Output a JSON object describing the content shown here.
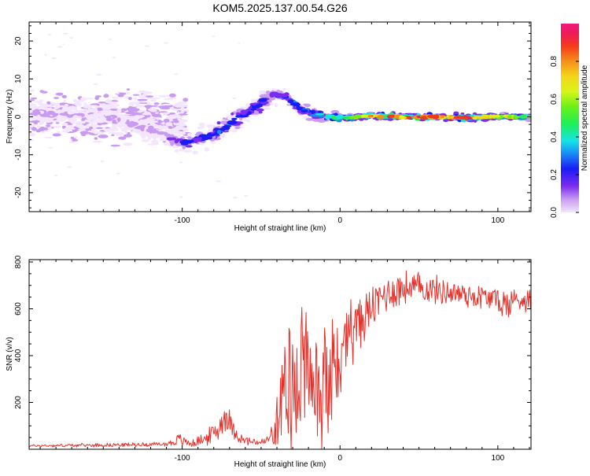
{
  "title": "KOM5.2025.137.00.54.G26",
  "chart_data": [
    {
      "type": "heatmap",
      "xlabel": "Height of straight line (km)",
      "ylabel": "Frequency (Hz)",
      "xlim": [
        -197,
        121
      ],
      "ylim": [
        -25,
        25
      ],
      "xticks": [
        "-100",
        "0",
        "100"
      ],
      "yticks": [
        "-20",
        "-10",
        "0",
        "10",
        "20"
      ],
      "ridge": {
        "x": [
          -197,
          -150,
          -110,
          -100,
          -90,
          -80,
          -70,
          -60,
          -50,
          -42,
          -35,
          -25,
          -15,
          -5,
          5,
          20,
          40,
          60,
          80,
          100,
          121
        ],
        "freq": [
          1.0,
          0.5,
          -5.0,
          -6.5,
          -6.0,
          -4.5,
          -2.0,
          1.0,
          3.5,
          5.8,
          5.5,
          2.0,
          0.5,
          0.0,
          -0.3,
          0.3,
          0.0,
          0.0,
          -0.3,
          0.1,
          0.0
        ],
        "amplitude": [
          0.08,
          0.08,
          0.12,
          0.22,
          0.28,
          0.3,
          0.32,
          0.25,
          0.3,
          0.2,
          0.28,
          0.32,
          0.4,
          0.5,
          0.6,
          0.85,
          0.9,
          0.92,
          0.88,
          0.75,
          0.55
        ]
      },
      "colorbar": {
        "label": "Normalized spectral amplitude",
        "range": [
          0,
          1
        ],
        "ticks": [
          "0.0",
          "0.2",
          "0.4",
          "0.6",
          "0.8"
        ]
      }
    },
    {
      "type": "line",
      "xlabel": "Height of straight line (km)",
      "ylabel": "SNR (v/v)",
      "xlim": [
        -197,
        121
      ],
      "ylim": [
        0,
        810
      ],
      "xticks": [
        "-100",
        "0",
        "100"
      ],
      "yticks": [
        "200",
        "400",
        "600",
        "800"
      ],
      "color": "#e8302a",
      "envelope": {
        "x": [
          -197,
          -150,
          -110,
          -102,
          -95,
          -85,
          -78,
          -72,
          -68,
          -62,
          -55,
          -48,
          -42,
          -38,
          -33,
          -28,
          -22,
          -15,
          -10,
          -5,
          0,
          5,
          10,
          15,
          20,
          25,
          30,
          40,
          50,
          60,
          70,
          80,
          90,
          100,
          105,
          110,
          121
        ],
        "y": [
          15,
          18,
          22,
          40,
          25,
          45,
          80,
          150,
          90,
          40,
          30,
          30,
          60,
          160,
          250,
          330,
          300,
          270,
          320,
          350,
          400,
          470,
          520,
          560,
          600,
          640,
          670,
          690,
          690,
          680,
          670,
          660,
          650,
          640,
          610,
          640,
          640
        ],
        "spread": [
          6,
          8,
          10,
          30,
          18,
          30,
          55,
          70,
          45,
          22,
          20,
          18,
          60,
          180,
          250,
          300,
          280,
          260,
          230,
          200,
          170,
          150,
          130,
          110,
          100,
          95,
          90,
          80,
          70,
          65,
          60,
          60,
          60,
          60,
          80,
          60,
          50
        ]
      }
    }
  ]
}
